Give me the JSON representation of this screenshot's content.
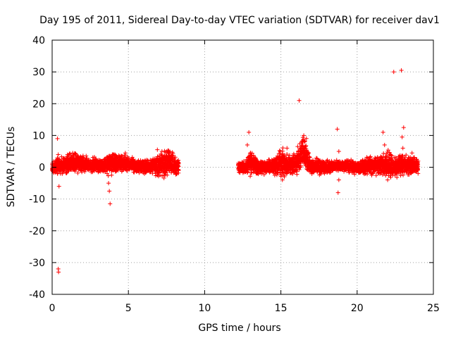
{
  "chart_data": {
    "type": "scatter",
    "title": "Day 195 of 2011, Sidereal Day-to-day VTEC variation (SDTVAR) for receiver dav1",
    "xlabel": "GPS time / hours",
    "ylabel": "SDTVAR / TECUs",
    "xlim": [
      0,
      25
    ],
    "ylim": [
      -40,
      40
    ],
    "xticks": [
      0,
      5,
      10,
      15,
      20,
      25
    ],
    "yticks": [
      -40,
      -30,
      -20,
      -10,
      0,
      10,
      20,
      30,
      40
    ],
    "grid": true,
    "marker": "+",
    "color": "#ff0000",
    "series": [
      {
        "name": "dav1",
        "segments": [
          {
            "start": 0.0,
            "end": 8.3,
            "envelope": [
              [
                0.0,
                -2,
                2
              ],
              [
                0.5,
                -2,
                3
              ],
              [
                1.0,
                -1.5,
                4
              ],
              [
                1.5,
                -1.5,
                4.5
              ],
              [
                2.0,
                -1,
                3.5
              ],
              [
                2.5,
                -1.5,
                2.5
              ],
              [
                3.0,
                -1.5,
                3
              ],
              [
                3.5,
                -2,
                3
              ],
              [
                4.0,
                -2,
                4
              ],
              [
                4.5,
                -1,
                4
              ],
              [
                5.0,
                -1,
                3.5
              ],
              [
                5.5,
                -1.5,
                2.5
              ],
              [
                6.0,
                -2,
                2
              ],
              [
                6.5,
                -2,
                3
              ],
              [
                7.0,
                -3,
                4
              ],
              [
                7.5,
                -2.5,
                6
              ],
              [
                7.8,
                -2,
                5
              ],
              [
                8.0,
                -2.5,
                3
              ],
              [
                8.3,
                -2.5,
                3
              ]
            ]
          },
          {
            "start": 12.2,
            "end": 24.0,
            "envelope": [
              [
                12.2,
                -2,
                1.5
              ],
              [
                12.7,
                -1.5,
                2
              ],
              [
                13.0,
                -2,
                5
              ],
              [
                13.5,
                -2,
                2
              ],
              [
                14.0,
                -2,
                2
              ],
              [
                14.5,
                -2,
                3
              ],
              [
                15.0,
                -3,
                5.5
              ],
              [
                15.5,
                -2,
                4
              ],
              [
                16.0,
                -2,
                4
              ],
              [
                16.4,
                -1,
                9
              ],
              [
                16.6,
                -1,
                10
              ],
              [
                17.0,
                -2,
                2
              ],
              [
                17.5,
                -2,
                2.5
              ],
              [
                18.0,
                -2,
                2
              ],
              [
                18.5,
                -1,
                2
              ],
              [
                19.0,
                -1,
                2
              ],
              [
                19.5,
                -1.5,
                2.5
              ],
              [
                20.0,
                -2,
                1.5
              ],
              [
                20.5,
                -2,
                2.5
              ],
              [
                21.0,
                -2,
                3.5
              ],
              [
                21.5,
                -2,
                3
              ],
              [
                22.0,
                -3,
                5
              ],
              [
                22.5,
                -3,
                3
              ],
              [
                23.0,
                -2,
                4
              ],
              [
                23.5,
                -2,
                3
              ],
              [
                24.0,
                -2,
                2.5
              ]
            ]
          }
        ],
        "outliers": [
          {
            "x": 0.35,
            "y": 9
          },
          {
            "x": 0.4,
            "y": 4
          },
          {
            "x": 0.45,
            "y": -6
          },
          {
            "x": 0.4,
            "y": -32
          },
          {
            "x": 0.42,
            "y": -33
          },
          {
            "x": 3.7,
            "y": -5
          },
          {
            "x": 3.75,
            "y": -7.5
          },
          {
            "x": 3.8,
            "y": -11.5
          },
          {
            "x": 3.9,
            "y": -2.5
          },
          {
            "x": 4.8,
            "y": 4.5
          },
          {
            "x": 6.9,
            "y": 5.5
          },
          {
            "x": 7.2,
            "y": 5
          },
          {
            "x": 12.8,
            "y": 7
          },
          {
            "x": 12.9,
            "y": 11
          },
          {
            "x": 15.1,
            "y": -4
          },
          {
            "x": 15.4,
            "y": 6
          },
          {
            "x": 16.2,
            "y": 21
          },
          {
            "x": 16.1,
            "y": 6.5
          },
          {
            "x": 16.5,
            "y": 10
          },
          {
            "x": 16.55,
            "y": 8
          },
          {
            "x": 18.7,
            "y": 12
          },
          {
            "x": 18.8,
            "y": 5
          },
          {
            "x": 18.8,
            "y": -4
          },
          {
            "x": 18.75,
            "y": -8
          },
          {
            "x": 21.7,
            "y": 11
          },
          {
            "x": 21.8,
            "y": 7
          },
          {
            "x": 22.2,
            "y": 4
          },
          {
            "x": 22.0,
            "y": -4
          },
          {
            "x": 22.4,
            "y": 30
          },
          {
            "x": 22.9,
            "y": 30.5
          },
          {
            "x": 23.05,
            "y": 12.5
          },
          {
            "x": 22.95,
            "y": 9.5
          },
          {
            "x": 23.0,
            "y": 6
          },
          {
            "x": 23.6,
            "y": 4.5
          }
        ]
      }
    ]
  }
}
